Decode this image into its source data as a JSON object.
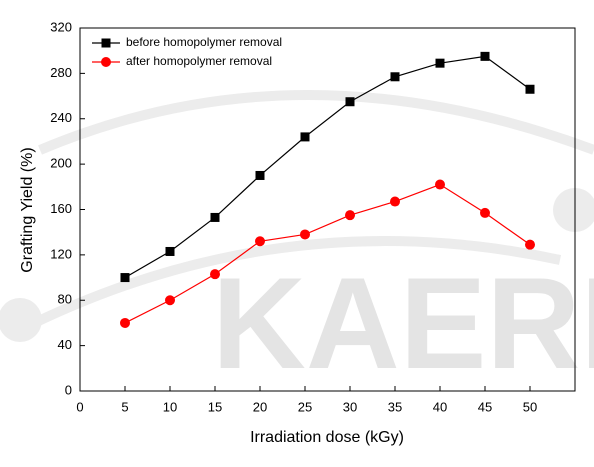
{
  "chart_data": {
    "type": "line",
    "watermark": "KAERI",
    "x_label": "Irradiation dose (kGy)",
    "y_label": "Grafting Yield (%)",
    "x": [
      5,
      10,
      15,
      20,
      25,
      30,
      35,
      40,
      45,
      50
    ],
    "series": [
      {
        "name": "before homopolymer removal",
        "color": "#000000",
        "marker": "square",
        "values": [
          100,
          123,
          153,
          190,
          224,
          255,
          277,
          289,
          295,
          266
        ]
      },
      {
        "name": "after homopolymer removal",
        "color": "#ff0000",
        "marker": "circle",
        "values": [
          60,
          80,
          103,
          132,
          138,
          155,
          167,
          182,
          157,
          129
        ]
      }
    ],
    "xlim": [
      0,
      55
    ],
    "xticks": [
      0,
      5,
      10,
      15,
      20,
      25,
      30,
      35,
      40,
      45,
      50
    ],
    "ylim": [
      0,
      320
    ],
    "yticks": [
      0,
      40,
      80,
      120,
      160,
      200,
      240,
      280,
      320
    ],
    "grid": false,
    "legend": "top-left"
  }
}
